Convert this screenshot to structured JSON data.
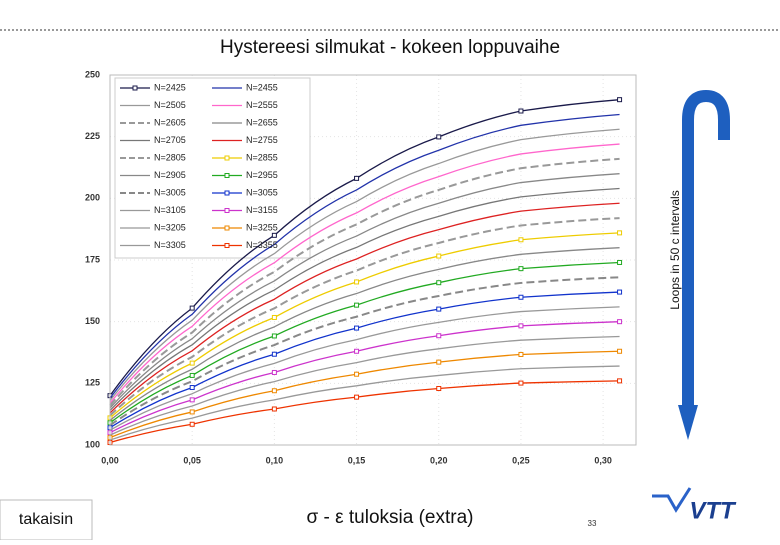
{
  "chart_data": {
    "type": "line",
    "title": "Hystereesi silmukat  - kokeen loppuvaihe",
    "side_label": "Loops in 50 c intervals",
    "footer_button": "takaisin",
    "footer_text": "σ - ε tuloksia (extra)",
    "page_number": "33",
    "logo": "VTT",
    "xlim": [
      0,
      0.32
    ],
    "ylim": [
      100,
      250
    ],
    "grid": true,
    "xticks": [
      {
        "value": 0,
        "label": "0,00"
      },
      {
        "value": 0.05,
        "label": "0,05"
      },
      {
        "value": 0.1,
        "label": "0,10"
      },
      {
        "value": 0.15,
        "label": "0,15"
      },
      {
        "value": 0.2,
        "label": "0,20"
      },
      {
        "value": 0.25,
        "label": "0,25"
      },
      {
        "value": 0.3,
        "label": "0,30"
      }
    ],
    "yticks": [
      100,
      125,
      150,
      175,
      200,
      225,
      250
    ],
    "x": [
      0,
      0.05,
      0.1,
      0.15,
      0.2,
      0.25,
      0.31
    ],
    "series": [
      {
        "name": "N=2425",
        "color": "#1a1a4a",
        "marker": true,
        "values": [
          120,
          155.5,
          185,
          208.1,
          224.9,
          235.4,
          240
        ]
      },
      {
        "name": "N=2455",
        "color": "#2233aa",
        "values": [
          119,
          153,
          181.3,
          203.4,
          219.5,
          229.6,
          234
        ]
      },
      {
        "name": "N=2505",
        "color": "#999999",
        "values": [
          118,
          150.6,
          177.6,
          198.7,
          214.1,
          223.8,
          228
        ]
      },
      {
        "name": "N=2555",
        "color": "#ff66cc",
        "values": [
          117,
          148.1,
          173.9,
          194.1,
          208.8,
          218,
          222
        ]
      },
      {
        "name": "N=2605",
        "color": "#999999",
        "dash": true,
        "values": [
          116,
          145.6,
          170.2,
          189.4,
          203.4,
          212.2,
          216
        ]
      },
      {
        "name": "N=2655",
        "color": "#888888",
        "values": [
          115,
          143.1,
          166.5,
          184.7,
          198,
          206.4,
          210
        ]
      },
      {
        "name": "N=2705",
        "color": "#777777",
        "values": [
          114,
          140.6,
          162.8,
          180.1,
          192.7,
          200.6,
          204
        ]
      },
      {
        "name": "N=2755",
        "color": "#dd2222",
        "values": [
          113,
          138.2,
          159.1,
          175.4,
          187.3,
          194.8,
          198
        ]
      },
      {
        "name": "N=2805",
        "color": "#999999",
        "dash": true,
        "values": [
          112,
          135.7,
          155.4,
          170.7,
          181.9,
          189,
          192
        ]
      },
      {
        "name": "N=2855",
        "color": "#eecc00",
        "marker": true,
        "values": [
          111,
          133.2,
          151.7,
          166.1,
          176.6,
          183.2,
          186
        ]
      },
      {
        "name": "N=2905",
        "color": "#888888",
        "values": [
          110,
          130.7,
          147.9,
          161.4,
          171.2,
          177.3,
          180
        ]
      },
      {
        "name": "N=2955",
        "color": "#22aa22",
        "marker": true,
        "values": [
          109,
          128.2,
          144.2,
          156.7,
          165.8,
          171.5,
          174
        ]
      },
      {
        "name": "N=3005",
        "color": "#888888",
        "dash": true,
        "values": [
          108,
          125.8,
          140.5,
          152,
          160.4,
          165.7,
          168
        ]
      },
      {
        "name": "N=3055",
        "color": "#1133cc",
        "marker": true,
        "values": [
          107,
          123.3,
          136.8,
          147.4,
          155.1,
          159.9,
          162
        ]
      },
      {
        "name": "N=3105",
        "color": "#999999",
        "values": [
          106,
          120.8,
          133.1,
          142.7,
          149.7,
          154.1,
          156
        ]
      },
      {
        "name": "N=3155",
        "color": "#cc33cc",
        "marker": true,
        "values": [
          105,
          118.3,
          129.4,
          138,
          144.3,
          148.3,
          150
        ]
      },
      {
        "name": "N=3205",
        "color": "#999999",
        "values": [
          104,
          115.8,
          125.7,
          133.4,
          139,
          142.5,
          144
        ]
      },
      {
        "name": "N=3255",
        "color": "#ee8800",
        "marker": true,
        "values": [
          103,
          113.4,
          122,
          128.7,
          133.6,
          136.7,
          138
        ]
      },
      {
        "name": "N=3305",
        "color": "#999999",
        "values": [
          102,
          110.9,
          118.3,
          124,
          128.2,
          130.9,
          132
        ]
      },
      {
        "name": "N=3355",
        "color": "#ee3300",
        "marker": true,
        "values": [
          101,
          108.4,
          114.6,
          119.4,
          122.9,
          125.1,
          126
        ]
      }
    ]
  }
}
